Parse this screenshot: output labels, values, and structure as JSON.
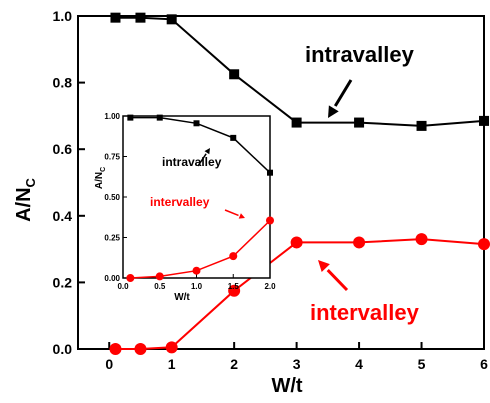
{
  "chart_data": {
    "type": "line",
    "xlabel": "W/t",
    "ylabel": "A/N",
    "ylabel_sub": "C",
    "xlim": [
      -0.5,
      6
    ],
    "ylim": [
      0,
      1
    ],
    "xticks": [
      "0",
      "1",
      "2",
      "3",
      "4",
      "5",
      "6"
    ],
    "yticks": [
      "0.0",
      "0.2",
      "0.4",
      "0.6",
      "0.8",
      "1.0"
    ],
    "x": [
      0.1,
      0.5,
      1,
      2,
      3,
      4,
      5,
      6
    ],
    "series": [
      {
        "name": "intravalley",
        "color": "#000000",
        "marker": "square",
        "values": [
          0.995,
          0.995,
          0.99,
          0.825,
          0.68,
          0.68,
          0.67,
          0.685
        ]
      },
      {
        "name": "intervalley",
        "color": "#ff0000",
        "marker": "circle",
        "values": [
          0.0,
          0.0,
          0.005,
          0.175,
          0.32,
          0.32,
          0.33,
          0.315
        ]
      }
    ],
    "annotations": [
      {
        "text": "intravalley",
        "color": "#000000"
      },
      {
        "text": "intervalley",
        "color": "#ff0000"
      }
    ],
    "inset": {
      "xlabel": "W/t",
      "ylabel": "A/N",
      "ylabel_sub": "C",
      "xlim": [
        0,
        2
      ],
      "ylim": [
        0,
        1
      ],
      "xticks": [
        "0.0",
        "0.5",
        "1.0",
        "1.5",
        "2.0"
      ],
      "yticks": [
        "0.00",
        "0.25",
        "0.50",
        "0.75",
        "1.00"
      ],
      "x": [
        0.1,
        0.5,
        1.0,
        1.5,
        2.0
      ],
      "series": [
        {
          "name": "intravalley",
          "color": "#000000",
          "marker": "square",
          "values": [
            0.99,
            0.99,
            0.955,
            0.865,
            0.65
          ]
        },
        {
          "name": "intervalley",
          "color": "#ff0000",
          "marker": "circle",
          "values": [
            0.0,
            0.01,
            0.045,
            0.135,
            0.355
          ]
        }
      ],
      "annotations": [
        {
          "text": "intravalley",
          "color": "#000000"
        },
        {
          "text": "intervalley",
          "color": "#ff0000"
        }
      ]
    }
  }
}
